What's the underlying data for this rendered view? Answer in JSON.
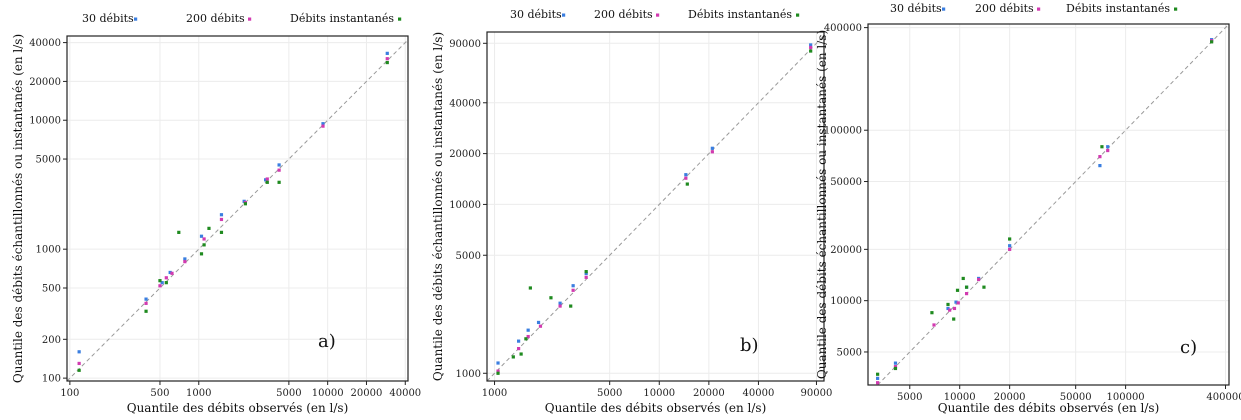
{
  "colors": {
    "s30": "#3a7ee0",
    "s200": "#d23ab0",
    "inst": "#1f8a1f",
    "frame": "#222222",
    "grid": "#ececec",
    "diag": "#9a9a9a"
  },
  "legend": {
    "items": [
      "30 débits",
      "200 débits",
      "Débits instantanés"
    ]
  },
  "chart_data": [
    {
      "type": "scatter",
      "tag": "a)",
      "xlabel": "Quantile des débits observés (en l/s)",
      "ylabel": "Quantile des débits échantillonnés ou instantanés (en l/s)",
      "scale": "log",
      "xlim": [
        95,
        42000
      ],
      "ylim": [
        95,
        45000
      ],
      "xticks": [
        100,
        500,
        1000,
        5000,
        10000,
        20000,
        40000
      ],
      "xtick_labels": [
        "100",
        "500",
        "1000",
        "5000",
        "10000",
        "20000",
        "40000"
      ],
      "yticks": [
        100,
        200,
        500,
        1000,
        5000,
        10000,
        20000,
        40000
      ],
      "ytick_labels": [
        "100",
        "200",
        "500",
        "1000",
        "5000",
        "10000",
        "20000",
        "40000"
      ],
      "grid": true,
      "legend_position": "top",
      "series": [
        {
          "name": "30 débits",
          "x": [
            118,
            390,
            520,
            600,
            780,
            1050,
            1500,
            2250,
            3300,
            4200,
            9200,
            29000
          ],
          "y": [
            160,
            410,
            550,
            660,
            840,
            1260,
            1850,
            2350,
            3450,
            4500,
            9400,
            33000
          ]
        },
        {
          "name": "200 débits",
          "x": [
            118,
            390,
            500,
            560,
            620,
            780,
            1100,
            1500,
            2300,
            3400,
            4200,
            9200,
            29000
          ],
          "y": [
            130,
            380,
            520,
            600,
            650,
            800,
            1200,
            1700,
            2300,
            3500,
            4100,
            9000,
            30000
          ]
        },
        {
          "name": "Débits instantanés",
          "x": [
            118,
            390,
            500,
            560,
            700,
            1050,
            1100,
            1200,
            1500,
            2300,
            3400,
            4200,
            29000
          ],
          "y": [
            115,
            330,
            570,
            550,
            1350,
            920,
            1080,
            1450,
            1350,
            2250,
            3300,
            3300,
            28000
          ]
        }
      ]
    },
    {
      "type": "scatter",
      "tag": "b)",
      "xlabel": "Quantile des débits observés (en l/s)",
      "ylabel": "Quantile des débits échantillonnés ou instantanés (en l/s)",
      "scale": "log",
      "xlim": [
        900,
        100000
      ],
      "ylim": [
        900,
        105000
      ],
      "xticks": [
        1000,
        5000,
        10000,
        20000,
        40000,
        90000
      ],
      "xtick_labels": [
        "1000",
        "5000",
        "10000",
        "20000",
        "40000",
        "90000"
      ],
      "yticks": [
        1000,
        5000,
        10000,
        20000,
        40000,
        90000
      ],
      "ytick_labels": [
        "1000",
        "5000",
        "10000",
        "20000",
        "40000",
        "90000"
      ],
      "grid": true,
      "legend_position": "top",
      "series": [
        {
          "name": "30 débits",
          "x": [
            1050,
            1400,
            1600,
            1850,
            2500,
            3000,
            3600,
            14500,
            21000,
            83000
          ],
          "y": [
            1150,
            1550,
            1800,
            2000,
            2600,
            3300,
            3900,
            15000,
            21500,
            88000
          ]
        },
        {
          "name": "200 débits",
          "x": [
            1050,
            1400,
            1600,
            1900,
            2500,
            3000,
            3600,
            14500,
            21000,
            83000
          ],
          "y": [
            1030,
            1400,
            1650,
            1900,
            2500,
            3100,
            3700,
            14300,
            20500,
            85000
          ]
        },
        {
          "name": "Débits instantanés",
          "x": [
            1050,
            1300,
            1450,
            1550,
            1650,
            2200,
            2900,
            3600,
            14800,
            83000
          ],
          "y": [
            1000,
            1250,
            1300,
            1600,
            3200,
            2800,
            2500,
            4000,
            13200,
            81000
          ]
        }
      ]
    },
    {
      "type": "scatter",
      "tag": "c)",
      "xlabel": "Quantile des débits observés (en l/s)",
      "ylabel": "Quantile des débits échantillonnés ou instantanés (en l/s)",
      "scale": "log",
      "xlim": [
        2800,
        420000
      ],
      "ylim": [
        3200,
        420000
      ],
      "xticks": [
        5000,
        10000,
        20000,
        50000,
        100000,
        400000
      ],
      "xtick_labels": [
        "5000",
        "10000",
        "20000",
        "50000",
        "100000",
        "400000"
      ],
      "yticks": [
        5000,
        10000,
        20000,
        50000,
        100000,
        400000
      ],
      "ytick_labels": [
        "5000",
        "10000",
        "20000",
        "50000",
        "100000",
        "400000"
      ],
      "grid": true,
      "legend_position": "top",
      "series": [
        {
          "name": "30 débits",
          "x": [
            3200,
            4100,
            8500,
            9500,
            11000,
            13000,
            20000,
            70000,
            78000,
            330000
          ],
          "y": [
            3500,
            4300,
            9000,
            9800,
            12000,
            13500,
            21000,
            62000,
            80000,
            340000
          ]
        },
        {
          "name": "200 débits",
          "x": [
            3200,
            4100,
            7000,
            8700,
            9300,
            9800,
            11000,
            13000,
            20000,
            70000,
            78000,
            330000
          ],
          "y": [
            3300,
            4100,
            7200,
            8800,
            9000,
            9700,
            11000,
            13300,
            20000,
            70000,
            76000,
            335000
          ]
        },
        {
          "name": "Débits instantanés",
          "x": [
            3200,
            4100,
            6800,
            8500,
            9200,
            9700,
            10500,
            11000,
            14000,
            20000,
            72000,
            330000
          ],
          "y": [
            3700,
            4000,
            8500,
            9500,
            7800,
            11500,
            13500,
            12000,
            12000,
            23000,
            80000,
            330000
          ]
        }
      ]
    }
  ]
}
